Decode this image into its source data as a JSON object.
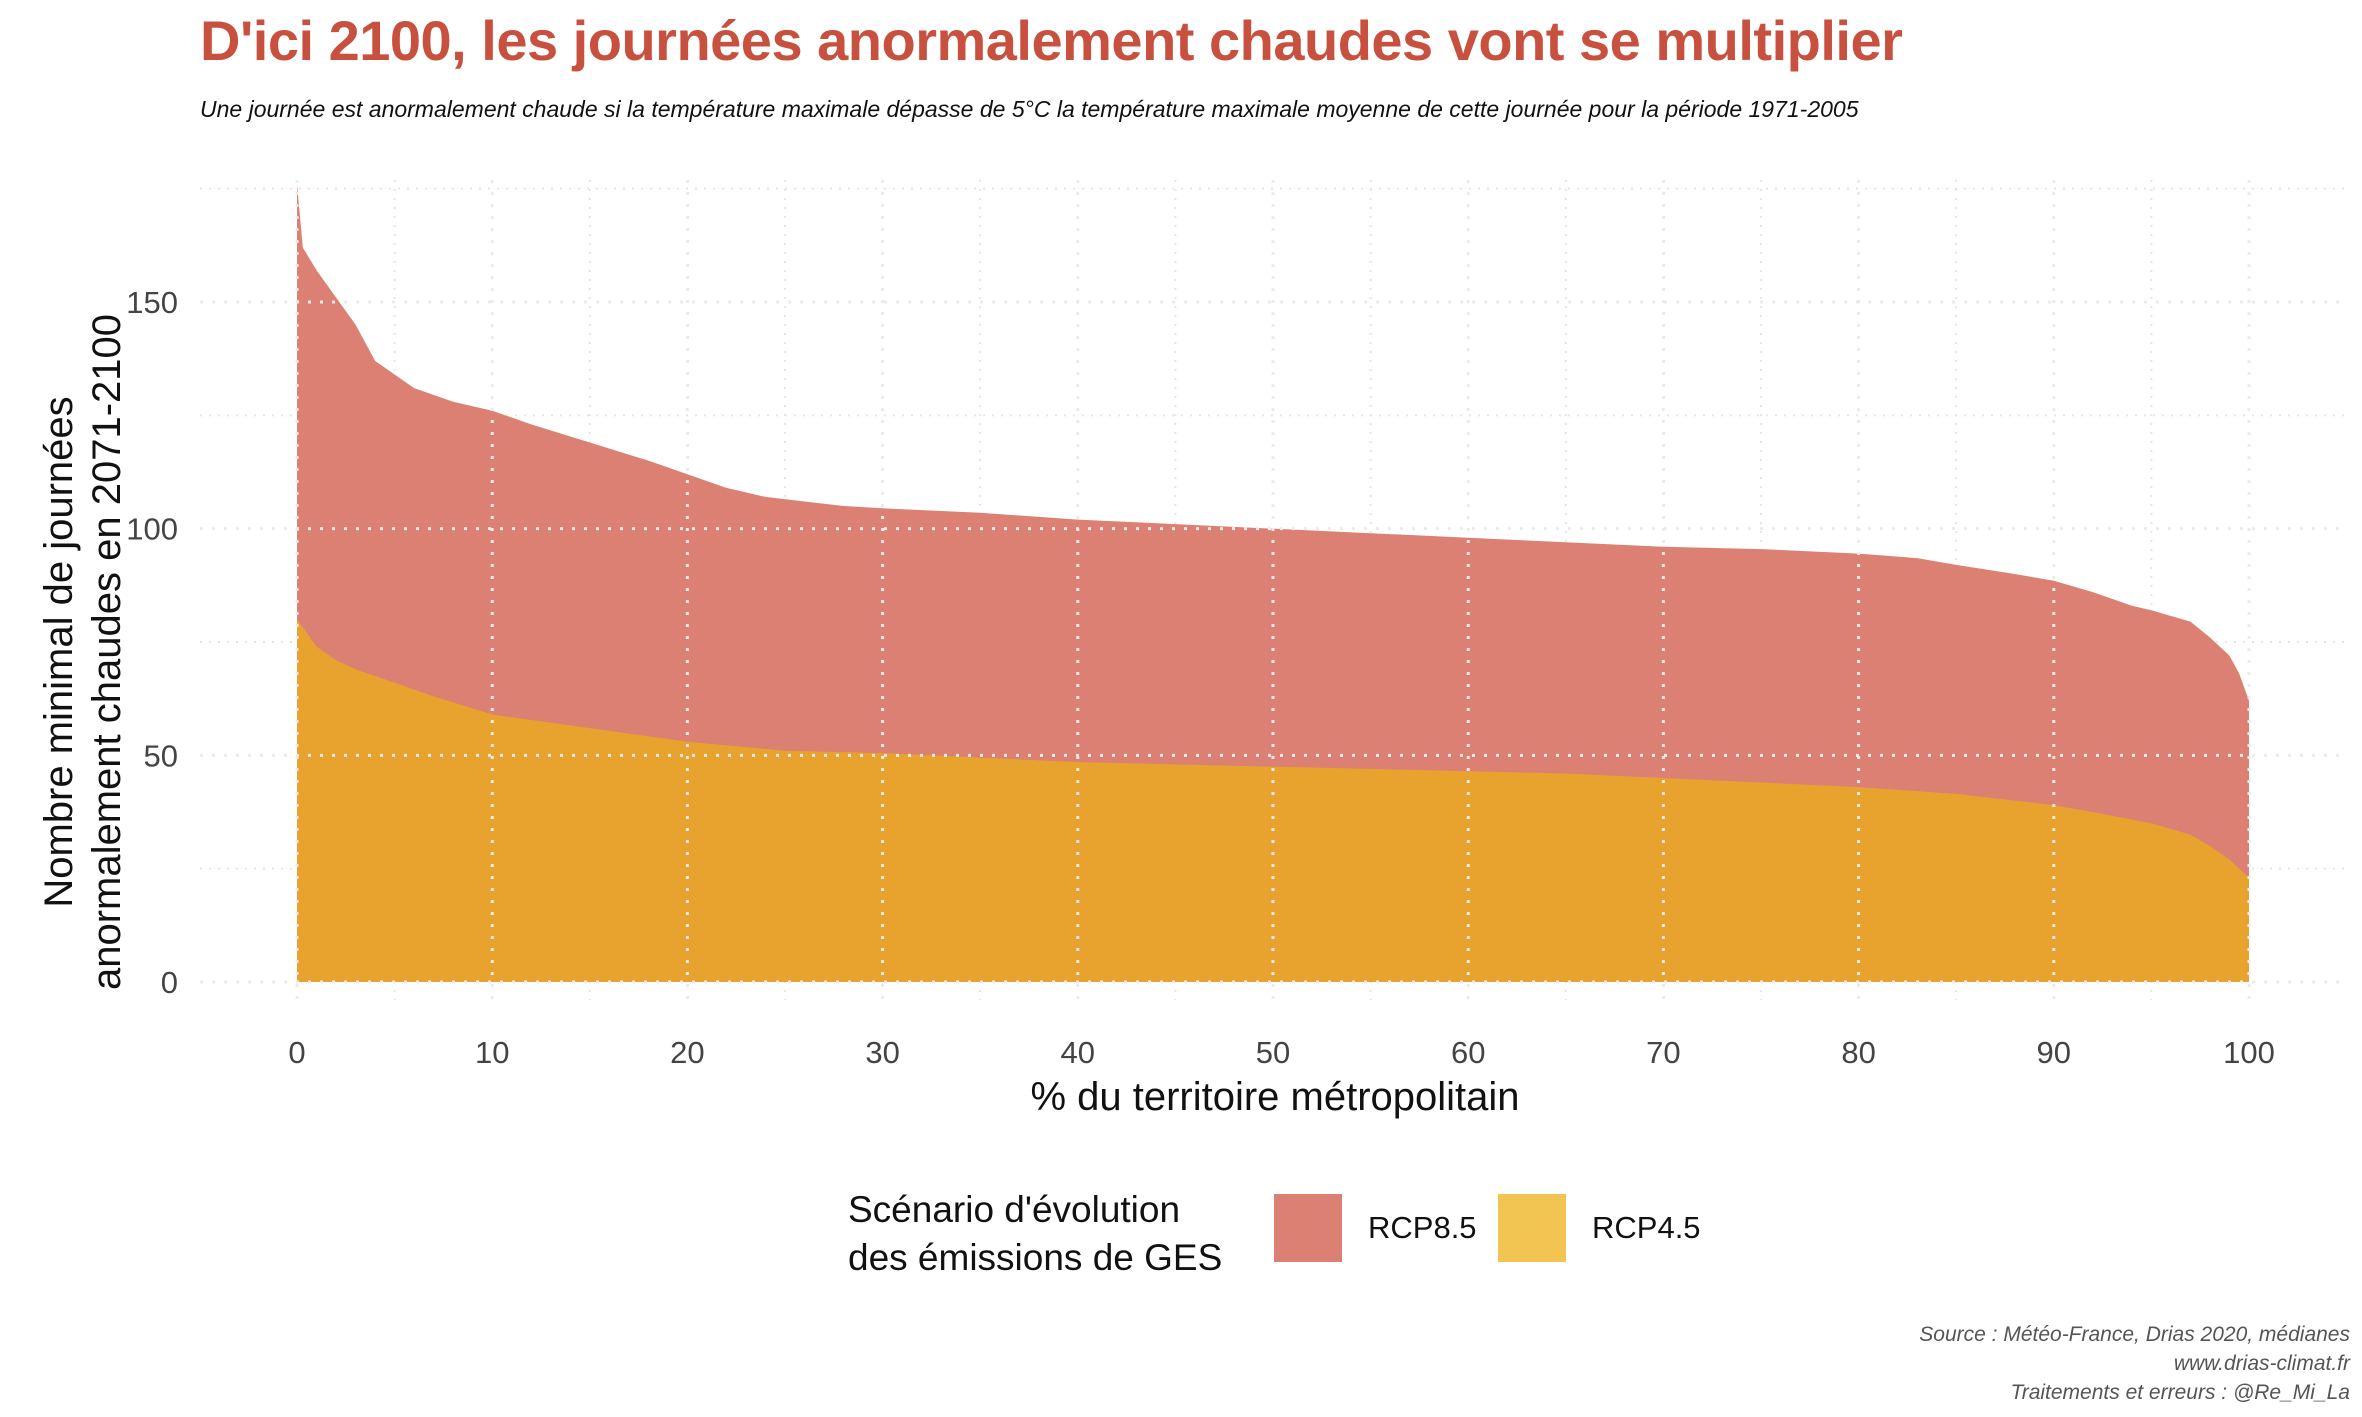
{
  "header": {
    "title": "D'ici 2100, les journées anormalement chaudes vont se multiplier",
    "subtitle": "Une journée est anormalement chaude si la température maximale dépasse de 5°C la température maximale moyenne de cette journée pour la période 1971-2005"
  },
  "legend": {
    "title_line1": "Scénario d'évolution",
    "title_line2": "des émissions de GES",
    "items": [
      {
        "label": "RCP8.5",
        "color": "#DB8073"
      },
      {
        "label": "RCP4.5",
        "color": "#E8A22E"
      }
    ],
    "rcp45_swatch_color": "#F2C452"
  },
  "source": {
    "line1": "Source : Météo-France, Drias 2020, médianes",
    "line2": "www.drias-climat.fr",
    "line3": "Traitements et erreurs : @Re_Mi_La"
  },
  "chart_data": {
    "type": "area",
    "xlabel": "% du territoire métropolitain",
    "ylabel_line1": "Nombre minimal de journées",
    "ylabel_line2": "anormalement chaudes en 2071-2100",
    "xlim": [
      -5,
      105
    ],
    "ylim": [
      -5,
      177
    ],
    "x_ticks": [
      0,
      10,
      20,
      30,
      40,
      50,
      60,
      70,
      80,
      90,
      100
    ],
    "y_ticks": [
      0,
      50,
      100,
      150
    ],
    "grid": true,
    "legend_position": "bottom",
    "series": [
      {
        "name": "RCP8.5",
        "color": "#DB8073",
        "x": [
          0,
          0.3,
          1,
          2,
          3,
          4,
          5,
          6,
          8,
          10,
          12,
          15,
          18,
          20,
          22,
          24,
          26,
          28,
          30,
          35,
          40,
          45,
          50,
          55,
          60,
          65,
          70,
          75,
          80,
          83,
          85,
          88,
          90,
          92,
          94,
          95,
          97,
          98,
          99,
          99.5,
          100
        ],
        "y": [
          176,
          162,
          157,
          151,
          145,
          137,
          134,
          131,
          128,
          126,
          123,
          119,
          115,
          112,
          109,
          107,
          106,
          105,
          104.5,
          103.5,
          102,
          101,
          100,
          99,
          98,
          97,
          96,
          95.5,
          94.5,
          93.5,
          92,
          90,
          88.5,
          86,
          83,
          82,
          79.5,
          76,
          72,
          68,
          62
        ]
      },
      {
        "name": "RCP4.5",
        "color": "#E8A22E",
        "x": [
          0,
          0.5,
          1,
          2,
          3,
          5,
          7,
          10,
          15,
          20,
          25,
          30,
          35,
          40,
          45,
          50,
          55,
          60,
          65,
          70,
          75,
          80,
          85,
          88,
          90,
          92,
          95,
          97,
          98,
          99,
          100
        ],
        "y": [
          80,
          77,
          74,
          71,
          69,
          66,
          63,
          59,
          56,
          53,
          51,
          50.5,
          49.5,
          48.5,
          48,
          47.5,
          47,
          46.5,
          46,
          45,
          44,
          43,
          41.5,
          40,
          39,
          37.5,
          35,
          32.5,
          30,
          27,
          23
        ]
      }
    ]
  }
}
